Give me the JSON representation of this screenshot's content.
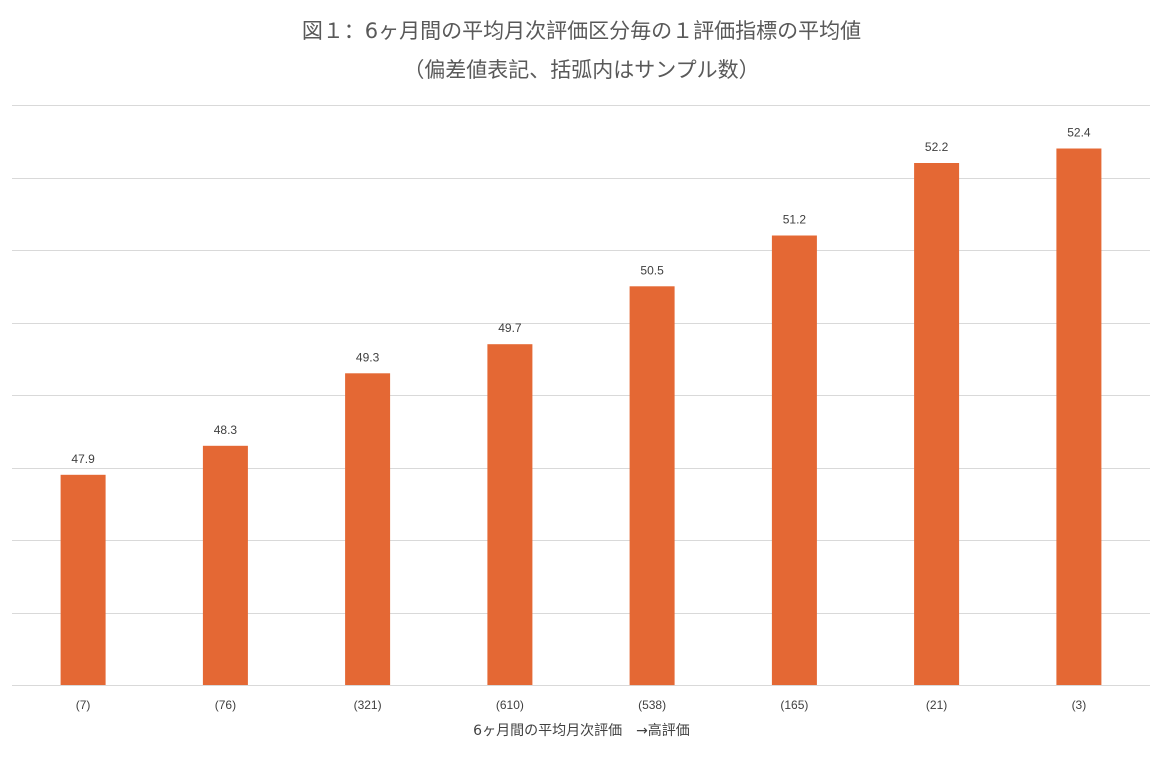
{
  "chart_data": {
    "type": "bar",
    "title": "図１：6ヶ月間の平均月次評価区分毎の１評価指標の平均値",
    "subtitle": "（偏差値表記、括弧内はサンプル数）",
    "xlabel": "6ヶ月間の平均月次評価　→高評価",
    "ylabel": "",
    "categories": [
      "(7)",
      "(76)",
      "(321)",
      "(610)",
      "(538)",
      "(165)",
      "(21)",
      "(3)"
    ],
    "values": [
      47.9,
      48.3,
      49.3,
      49.7,
      50.5,
      51.2,
      52.2,
      52.4
    ],
    "value_labels": [
      "47.9",
      "48.3",
      "49.3",
      "49.7",
      "50.5",
      "51.2",
      "52.2",
      "52.4"
    ],
    "ylim": [
      45.0,
      53.0
    ],
    "gridlines": [
      45.0,
      46.0,
      47.0,
      48.0,
      49.0,
      50.0,
      51.0,
      52.0,
      53.0
    ],
    "grid": true,
    "bar_color": "#E46834",
    "grid_color": "#D9D9D9",
    "legend": "none"
  }
}
